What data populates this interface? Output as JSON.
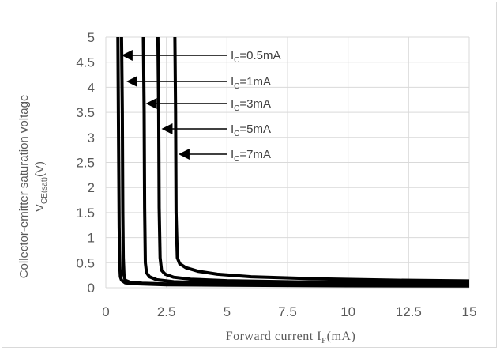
{
  "chart_data": {
    "type": "line",
    "xlabel_main": "Forward current I",
    "xlabel_sub": "F",
    "xlabel_unit": "(mA)",
    "ylabel_line1": "Collector-emitter saturation voltage",
    "ylabel_main": "V",
    "ylabel_sub": "CE(sat)",
    "ylabel_unit": "(V)",
    "xlim": [
      0,
      15
    ],
    "ylim": [
      0,
      5
    ],
    "grid": true,
    "x_ticks": [
      "0",
      "2.5",
      "5",
      "7.5",
      "10",
      "12.5",
      "15"
    ],
    "y_ticks": [
      "0",
      "0.5",
      "1",
      "1.5",
      "2",
      "2.5",
      "3",
      "3.5",
      "4",
      "4.5",
      "5"
    ],
    "series": [
      {
        "name": "IC=0.5mA",
        "label_main": "I",
        "label_sub": "C",
        "label_rest": "=0.5mA",
        "x": [
          0.5,
          0.52,
          0.55,
          0.58,
          0.6,
          0.65,
          0.8,
          1.2,
          2.5,
          5,
          10,
          15
        ],
        "y": [
          5,
          3.5,
          1.2,
          0.4,
          0.22,
          0.15,
          0.1,
          0.08,
          0.06,
          0.05,
          0.04,
          0.035
        ],
        "arrow_target": [
          0.55,
          4.6
        ]
      },
      {
        "name": "IC=1mA",
        "label_main": "I",
        "label_sub": "C",
        "label_rest": "=1mA",
        "x": [
          0.65,
          0.68,
          0.7,
          0.72,
          0.75,
          0.8,
          1.0,
          1.5,
          3,
          6,
          10,
          15
        ],
        "y": [
          5,
          3.5,
          1.5,
          0.6,
          0.25,
          0.15,
          0.11,
          0.09,
          0.07,
          0.06,
          0.05,
          0.045
        ],
        "arrow_target": [
          0.75,
          4.15
        ]
      },
      {
        "name": "IC=3mA",
        "label_main": "I",
        "label_sub": "C",
        "label_rest": "=3mA",
        "x": [
          1.55,
          1.58,
          1.6,
          1.63,
          1.68,
          1.8,
          2.1,
          2.8,
          4,
          6,
          10,
          15
        ],
        "y": [
          5,
          3.5,
          1.6,
          0.5,
          0.3,
          0.22,
          0.16,
          0.12,
          0.1,
          0.08,
          0.065,
          0.055
        ],
        "arrow_target": [
          1.55,
          3.7
        ]
      },
      {
        "name": "IC=5mA",
        "label_main": "I",
        "label_sub": "C",
        "label_rest": "=5mA",
        "x": [
          2.15,
          2.18,
          2.2,
          2.24,
          2.3,
          2.45,
          2.8,
          3.5,
          5,
          7.5,
          11,
          15
        ],
        "y": [
          5,
          3.5,
          1.6,
          0.6,
          0.35,
          0.27,
          0.21,
          0.17,
          0.14,
          0.12,
          0.1,
          0.09
        ],
        "arrow_target": [
          2.2,
          3.2
        ]
      },
      {
        "name": "IC=7mA",
        "label_main": "I",
        "label_sub": "C",
        "label_rest": "=7mA",
        "x": [
          2.85,
          2.88,
          2.9,
          2.95,
          3.05,
          3.3,
          3.8,
          4.6,
          6,
          8.5,
          12,
          15
        ],
        "y": [
          5,
          3.5,
          1.5,
          0.6,
          0.48,
          0.4,
          0.33,
          0.27,
          0.22,
          0.18,
          0.15,
          0.135
        ],
        "arrow_target": [
          2.9,
          2.7
        ]
      }
    ]
  }
}
